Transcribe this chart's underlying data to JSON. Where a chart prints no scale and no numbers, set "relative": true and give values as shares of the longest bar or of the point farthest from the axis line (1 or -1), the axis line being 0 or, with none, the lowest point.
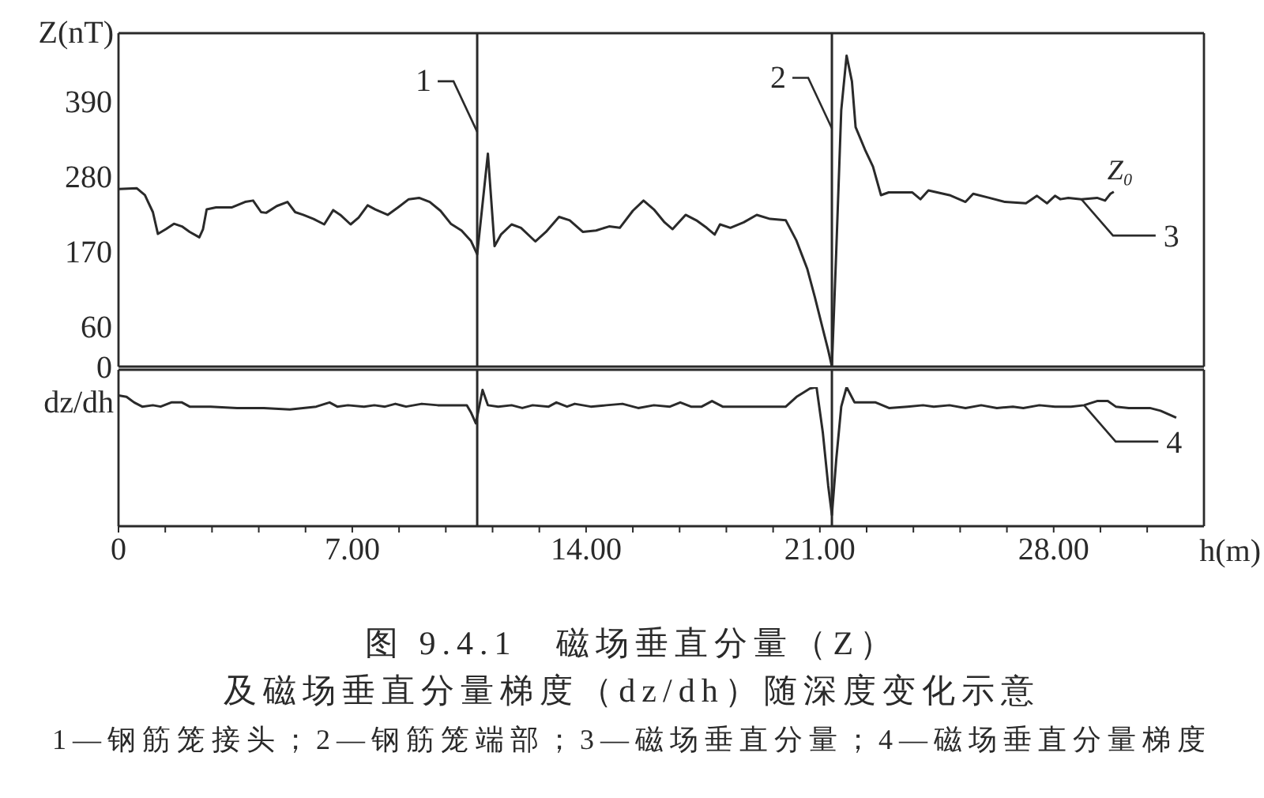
{
  "chart_data": [
    {
      "type": "line",
      "ylabel": "Z(nT)",
      "xlim": [
        0,
        32.5
      ],
      "ylim": [
        0,
        490
      ],
      "yticks": [
        0,
        60,
        170,
        280,
        390
      ],
      "tick_labels": "y",
      "series": [
        {
          "name": "3",
          "color": "#2a2a2a",
          "x": [
            0,
            0.55,
            0.79,
            1.03,
            1.18,
            1.42,
            1.66,
            1.9,
            2.13,
            2.42,
            2.53,
            2.64,
            2.92,
            3.4,
            3.79,
            4.03,
            4.27,
            4.42,
            4.74,
            5.06,
            5.29,
            5.53,
            5.84,
            6.16,
            6.43,
            6.64,
            6.95,
            7.19,
            7.46,
            7.69,
            8.06,
            8.37,
            8.69,
            9.0,
            9.32,
            9.64,
            9.95,
            10.27,
            10.55,
            10.74,
            11.06,
            11.26,
            11.45,
            11.77,
            12.05,
            12.48,
            12.8,
            13.19,
            13.51,
            13.9,
            14.3,
            14.69,
            15.01,
            15.4,
            15.72,
            16.03,
            16.35,
            16.59,
            16.98,
            17.3,
            17.61,
            17.85,
            18.01,
            18.32,
            18.72,
            19.11,
            19.51,
            19.98,
            20.3,
            20.62,
            20.85,
            21.09,
            21.25,
            21.36,
            21.49,
            21.64,
            21.8,
            21.96,
            22.07,
            22.35,
            22.59,
            22.83,
            23.06,
            23.3,
            23.77,
            24.01,
            24.25,
            24.88,
            25.36,
            25.59,
            26.07,
            26.54,
            27.17,
            27.5,
            27.8,
            28.04,
            28.2,
            28.44,
            28.83,
            29.3,
            29.54,
            29.7,
            29.8
          ],
          "values": [
            261,
            262,
            252,
            227,
            195,
            202,
            210,
            206,
            198,
            190,
            202,
            231,
            234,
            234,
            242,
            244,
            227,
            226,
            236,
            242,
            227,
            223,
            217,
            209,
            230,
            223,
            209,
            219,
            237,
            231,
            223,
            234,
            246,
            248,
            242,
            229,
            210,
            200,
            185,
            165,
            313,
            177,
            194,
            209,
            204,
            184,
            198,
            220,
            215,
            198,
            200,
            206,
            204,
            229,
            244,
            231,
            212,
            202,
            223,
            215,
            204,
            194,
            209,
            204,
            212,
            223,
            217,
            215,
            185,
            144,
            102,
            55,
            24,
            0,
            169,
            377,
            457,
            419,
            352,
            319,
            294,
            252,
            256,
            256,
            256,
            246,
            259,
            252,
            242,
            254,
            248,
            242,
            240,
            251,
            240,
            251,
            246,
            248,
            246,
            248,
            244,
            254,
            257
          ]
        }
      ],
      "ref_lines": [
        {
          "axis": "x",
          "value": 10.74
        },
        {
          "axis": "x",
          "value": 21.36
        }
      ],
      "annotations": [
        {
          "text": "1",
          "x": 10.74,
          "y": 345
        },
        {
          "text": "2",
          "x": 21.36,
          "y": 350
        },
        {
          "text": "Z₀",
          "x": 29.8,
          "y": 257
        }
      ]
    },
    {
      "type": "line",
      "relative": true,
      "ylabel": "dz/dh",
      "xlabel": "h(m)",
      "xlim": [
        0,
        32.5
      ],
      "xticks": [
        0,
        {
          "value": 1.4,
          "label": null
        },
        {
          "value": 2.8,
          "label": null
        },
        {
          "value": 4.2,
          "label": null
        },
        {
          "value": 5.6,
          "label": null
        },
        {
          "value": 7,
          "label": "7.00"
        },
        {
          "value": 8.4,
          "label": null
        },
        {
          "value": 9.8,
          "label": null
        },
        {
          "value": 11.2,
          "label": null
        },
        {
          "value": 12.6,
          "label": null
        },
        {
          "value": 14,
          "label": "14.00"
        },
        {
          "value": 15.4,
          "label": null
        },
        {
          "value": 16.8,
          "label": null
        },
        {
          "value": 18.2,
          "label": null
        },
        {
          "value": 19.6,
          "label": null
        },
        {
          "value": 21,
          "label": "21.00"
        },
        {
          "value": 22.4,
          "label": null
        },
        {
          "value": 23.8,
          "label": null
        },
        {
          "value": 25.2,
          "label": null
        },
        {
          "value": 26.6,
          "label": null
        },
        {
          "value": 28,
          "label": "28.00"
        },
        {
          "value": 29.4,
          "label": null
        },
        {
          "value": 30.8,
          "label": null
        }
      ],
      "tick_labels": "x",
      "series": [
        {
          "name": "4",
          "color": "#2a2a2a",
          "x": [
            0,
            0.24,
            0.47,
            0.71,
            1.03,
            1.26,
            1.58,
            1.9,
            2.13,
            2.76,
            3.55,
            4.35,
            5.13,
            5.92,
            6.32,
            6.55,
            6.87,
            7.35,
            7.66,
            7.98,
            8.29,
            8.61,
            9.08,
            9.56,
            10.19,
            10.43,
            10.55,
            10.7,
            10.9,
            11.06,
            11.37,
            11.77,
            12.09,
            12.4,
            12.88,
            13.11,
            13.43,
            13.66,
            14.14,
            14.61,
            15.09,
            15.56,
            16.03,
            16.51,
            16.82,
            17.14,
            17.46,
            17.77,
            18.09,
            18.56,
            19.19,
            19.98,
            20.3,
            20.7,
            20.9,
            21.09,
            21.25,
            21.36,
            21.49,
            21.64,
            21.8,
            22.04,
            22.36,
            22.67,
            23.07,
            23.62,
            24.09,
            24.41,
            24.88,
            25.36,
            25.83,
            26.3,
            26.78,
            27.09,
            27.57,
            28.04,
            28.52,
            28.91,
            29.3,
            29.62,
            29.86,
            30.25,
            30.88,
            31.2,
            31.67
          ],
          "values": [
            0.94,
            0.93,
            0.89,
            0.86,
            0.87,
            0.86,
            0.89,
            0.89,
            0.86,
            0.86,
            0.85,
            0.85,
            0.84,
            0.86,
            0.89,
            0.86,
            0.87,
            0.86,
            0.87,
            0.86,
            0.88,
            0.86,
            0.88,
            0.87,
            0.87,
            0.87,
            0.82,
            0.74,
            0.98,
            0.87,
            0.86,
            0.87,
            0.85,
            0.87,
            0.86,
            0.89,
            0.86,
            0.88,
            0.86,
            0.87,
            0.88,
            0.85,
            0.87,
            0.86,
            0.89,
            0.86,
            0.86,
            0.9,
            0.86,
            0.86,
            0.86,
            0.86,
            0.93,
            0.99,
            1,
            0.67,
            0.29,
            0.08,
            0.48,
            0.86,
            1,
            0.89,
            0.89,
            0.89,
            0.85,
            0.86,
            0.87,
            0.86,
            0.87,
            0.85,
            0.87,
            0.85,
            0.86,
            0.85,
            0.87,
            0.86,
            0.86,
            0.87,
            0.9,
            0.9,
            0.86,
            0.85,
            0.85,
            0.83,
            0.78
          ]
        }
      ],
      "ref_lines": [
        {
          "axis": "x",
          "value": 10.74
        },
        {
          "axis": "x",
          "value": 21.36
        }
      ],
      "title": "图 9.4.1　磁场垂直分量（Z）",
      "subtitle": "及磁场垂直分量梯度（dz/dh）随深度变化示意",
      "annotations": [
        "1—钢筋笼接头；2—钢筋笼端部；3—磁场垂直分量；4—磁场垂直分量梯度"
      ]
    }
  ]
}
